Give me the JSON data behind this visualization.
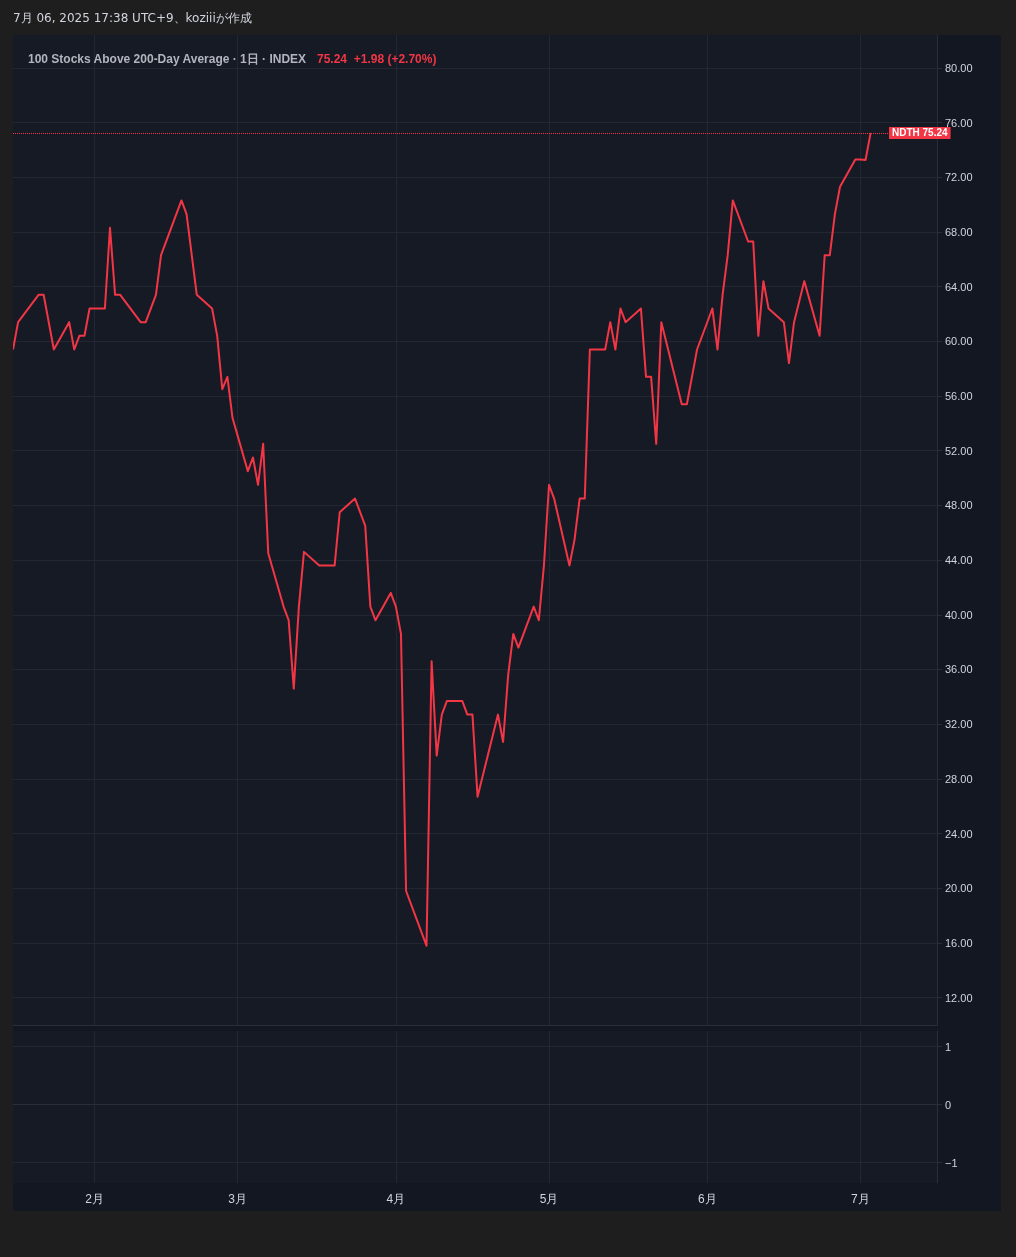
{
  "chart_data": [
    {
      "type": "line",
      "title": "100 Stocks Above 200-Day Average · 1日 · INDEX",
      "subtitle": "75.24  +1.98 (+2.70%)",
      "annotations": [
        "7月 06, 2025 17:38 UTC+9、koziiiが作成"
      ],
      "x": [
        "2025-01-16",
        "2025-01-17",
        "2025-01-21",
        "2025-01-22",
        "2025-01-24",
        "2025-01-27",
        "2025-01-28",
        "2025-01-29",
        "2025-01-30",
        "2025-01-31",
        "2025-02-03",
        "2025-02-04",
        "2025-02-05",
        "2025-02-06",
        "2025-02-10",
        "2025-02-11",
        "2025-02-13",
        "2025-02-14",
        "2025-02-18",
        "2025-02-19",
        "2025-02-21",
        "2025-02-24",
        "2025-02-25",
        "2025-02-26",
        "2025-02-27",
        "2025-02-28",
        "2025-03-03",
        "2025-03-04",
        "2025-03-05",
        "2025-03-06",
        "2025-03-07",
        "2025-03-10",
        "2025-03-11",
        "2025-03-12",
        "2025-03-13",
        "2025-03-14",
        "2025-03-17",
        "2025-03-18",
        "2025-03-19",
        "2025-03-20",
        "2025-03-21",
        "2025-03-24",
        "2025-03-26",
        "2025-03-27",
        "2025-03-28",
        "2025-03-31",
        "2025-04-01",
        "2025-04-02",
        "2025-04-03",
        "2025-04-07",
        "2025-04-08",
        "2025-04-09",
        "2025-04-10",
        "2025-04-11",
        "2025-04-14",
        "2025-04-15",
        "2025-04-16",
        "2025-04-17",
        "2025-04-21",
        "2025-04-22",
        "2025-04-23",
        "2025-04-24",
        "2025-04-25",
        "2025-04-28",
        "2025-04-29",
        "2025-04-30",
        "2025-05-01",
        "2025-05-02",
        "2025-05-05",
        "2025-05-06",
        "2025-05-07",
        "2025-05-08",
        "2025-05-09",
        "2025-05-12",
        "2025-05-13",
        "2025-05-14",
        "2025-05-15",
        "2025-05-16",
        "2025-05-19",
        "2025-05-20",
        "2025-05-21",
        "2025-05-22",
        "2025-05-23",
        "2025-05-27",
        "2025-05-28",
        "2025-05-29",
        "2025-05-30",
        "2025-06-02",
        "2025-06-03",
        "2025-06-04",
        "2025-06-05",
        "2025-06-06",
        "2025-06-09",
        "2025-06-10",
        "2025-06-11",
        "2025-06-12",
        "2025-06-13",
        "2025-06-16",
        "2025-06-17",
        "2025-06-18",
        "2025-06-20",
        "2025-06-23",
        "2025-06-24",
        "2025-06-25",
        "2025-06-26",
        "2025-06-27",
        "2025-06-30",
        "2025-07-01",
        "2025-07-02",
        "2025-07-03"
      ],
      "series": [
        {
          "color": "#f23645",
          "values": [
            59.4,
            61.4,
            63.4,
            63.4,
            59.4,
            61.4,
            59.4,
            60.4,
            60.4,
            62.4,
            62.4,
            68.3,
            63.4,
            63.4,
            61.4,
            61.4,
            63.4,
            66.3,
            70.3,
            69.3,
            63.4,
            62.4,
            60.4,
            56.5,
            57.4,
            54.4,
            50.5,
            51.5,
            49.5,
            52.5,
            44.5,
            40.6,
            39.6,
            34.6,
            40.6,
            44.6,
            43.6,
            43.6,
            43.6,
            43.6,
            47.5,
            48.5,
            46.5,
            40.6,
            39.6,
            41.6,
            40.6,
            38.6,
            19.8,
            15.8,
            36.6,
            29.7,
            32.7,
            33.7,
            33.7,
            32.7,
            32.7,
            26.7,
            32.7,
            30.7,
            35.6,
            38.6,
            37.6,
            40.6,
            39.6,
            43.6,
            49.5,
            48.5,
            43.6,
            45.5,
            48.5,
            48.5,
            59.4,
            59.4,
            61.4,
            59.4,
            62.4,
            61.4,
            62.4,
            57.4,
            57.4,
            52.5,
            61.4,
            55.4,
            55.4,
            57.4,
            59.4,
            62.4,
            59.4,
            63.4,
            66.3,
            70.3,
            67.3,
            67.3,
            60.4,
            64.4,
            62.4,
            61.4,
            58.4,
            61.4,
            64.4,
            60.4,
            66.3,
            66.3,
            69.3,
            71.3,
            73.3,
            73.3,
            73.26,
            75.24
          ]
        }
      ],
      "xlim": [
        "2025-01-16",
        "2025-07-16"
      ],
      "ylim": [
        10,
        82.4
      ],
      "yticks": [
        {
          "value": 12,
          "label": "12.00"
        },
        {
          "value": 16,
          "label": "16.00"
        },
        {
          "value": 20,
          "label": "20.00"
        },
        {
          "value": 24,
          "label": "24.00"
        },
        {
          "value": 28,
          "label": "28.00"
        },
        {
          "value": 32,
          "label": "32.00"
        },
        {
          "value": 36,
          "label": "36.00"
        },
        {
          "value": 40,
          "label": "40.00"
        },
        {
          "value": 44,
          "label": "44.00"
        },
        {
          "value": 48,
          "label": "48.00"
        },
        {
          "value": 52,
          "label": "52.00"
        },
        {
          "value": 56,
          "label": "56.00"
        },
        {
          "value": 60,
          "label": "60.00"
        },
        {
          "value": 64,
          "label": "64.00"
        },
        {
          "value": 68,
          "label": "68.00"
        },
        {
          "value": 72,
          "label": "72.00"
        },
        {
          "value": 76,
          "label": "76.00"
        },
        {
          "value": 80,
          "label": "80.00"
        }
      ],
      "xticks": [
        {
          "value": "2025-02-01",
          "label": null
        },
        {
          "value": "2025-03-01",
          "label": null
        },
        {
          "value": "2025-04-01",
          "label": null
        },
        {
          "value": "2025-05-01",
          "label": null
        },
        {
          "value": "2025-06-01",
          "label": null
        },
        {
          "value": "2025-07-01",
          "label": null
        }
      ],
      "ref_lines": [
        {
          "axis": "y",
          "value": 75.24,
          "label": "NDTH 75.24",
          "color": "#f23645",
          "line_style": "dotted"
        }
      ],
      "grid": true,
      "tick_labels": "y",
      "line_style": "solid",
      "marker": "none"
    },
    {
      "type": "line",
      "xlim": [
        "2025-01-16",
        "2025-07-16"
      ],
      "ylim": [
        -1.35,
        1.27
      ],
      "yticks": [
        {
          "value": -1,
          "label": "−1"
        },
        0,
        1
      ],
      "xticks": [
        {
          "value": "2025-02-01",
          "label": "2月"
        },
        {
          "value": "2025-03-01",
          "label": "3月"
        },
        {
          "value": "2025-04-01",
          "label": "4月"
        },
        {
          "value": "2025-05-01",
          "label": "5月"
        },
        {
          "value": "2025-06-01",
          "label": "6月"
        },
        {
          "value": "2025-07-01",
          "label": "7月"
        }
      ],
      "grid": true
    }
  ]
}
